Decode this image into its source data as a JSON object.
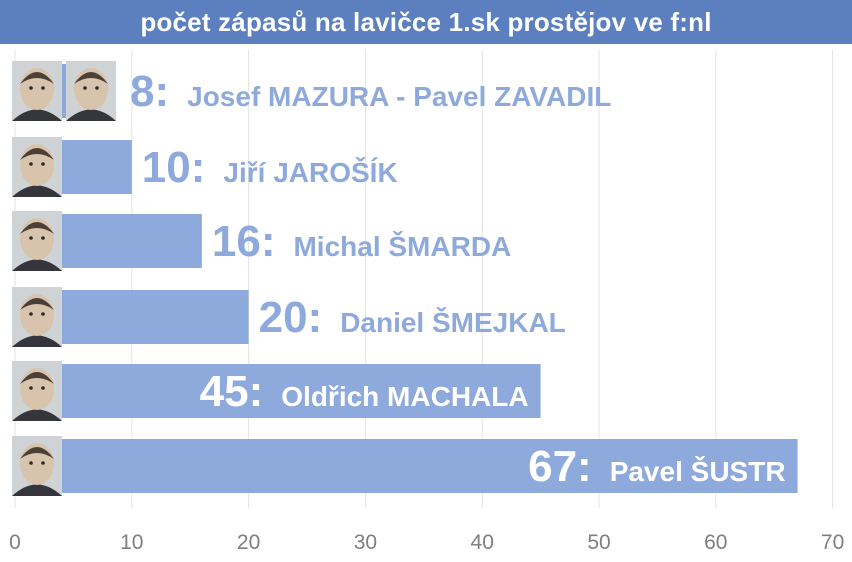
{
  "title": "počet zápasů na lavičce 1.sk prostějov ve f:nl",
  "colors": {
    "bar": "#8ea9db",
    "title_background": "#5b7fbf",
    "label_on_light": "#8ea9db",
    "label_on_bar": "#ffffff",
    "grid": "#e3e3e3",
    "tick": "#7f7f7f"
  },
  "chart_data": {
    "type": "bar",
    "orientation": "horizontal",
    "title": "počet zápasů na lavičce 1.sk prostějov ve f:nl",
    "categories": [
      "Josef MAZURA - Pavel ZAVADIL",
      "Jiří JAROŠÍK",
      "Michal ŠMARDA",
      "Daniel ŠMEJKAL",
      "Oldřich MACHALA",
      "Pavel ŠUSTR"
    ],
    "values": [
      8,
      10,
      16,
      20,
      45,
      67
    ],
    "value_labels": [
      "8:",
      "10:",
      "16:",
      "20:",
      "45:",
      "67:"
    ],
    "xlim": [
      0,
      70
    ],
    "xticks": [
      "0",
      "10",
      "20",
      "30",
      "40",
      "50",
      "60",
      "70"
    ],
    "xlabel": "",
    "ylabel": "",
    "grid": "vertical",
    "legend": "none",
    "photos": [
      [
        "coach-photo",
        "coach-photo"
      ],
      [
        "coach-photo"
      ],
      [
        "coach-photo"
      ],
      [
        "coach-photo"
      ],
      [
        "coach-photo"
      ],
      [
        "coach-photo"
      ]
    ]
  }
}
